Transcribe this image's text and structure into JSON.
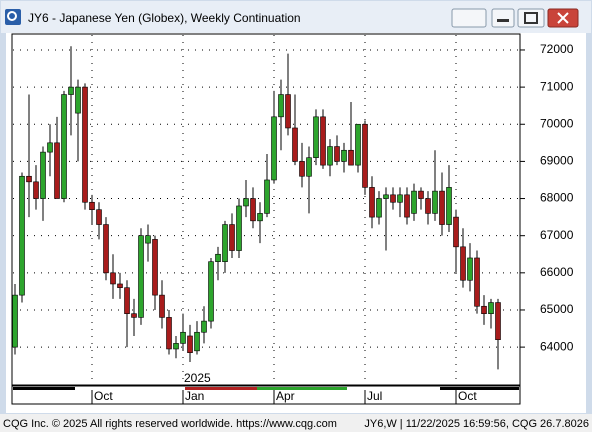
{
  "window": {
    "title": "JY6 - Japanese Yen (Globex), Weekly Continuation"
  },
  "chart_data": {
    "type": "candlestick",
    "annotation": "2025",
    "categories": [
      null,
      null,
      null,
      null,
      null,
      null,
      null,
      null,
      null,
      null,
      null,
      "Oct",
      null,
      null,
      null,
      null,
      null,
      null,
      null,
      null,
      null,
      null,
      null,
      null,
      "Jan",
      null,
      null,
      null,
      null,
      null,
      null,
      null,
      null,
      null,
      null,
      null,
      null,
      "Apr",
      null,
      null,
      null,
      null,
      null,
      null,
      null,
      null,
      null,
      null,
      null,
      null,
      "Jul",
      null,
      null,
      null,
      null,
      null,
      null,
      null,
      null,
      null,
      null,
      null,
      null,
      "Oct",
      null,
      null,
      null,
      null,
      null,
      null
    ],
    "open": [
      64000,
      65400,
      68600,
      68450,
      68000,
      69250,
      69500,
      68000,
      70800,
      70300,
      71000,
      67900,
      67700,
      67300,
      66000,
      65700,
      65600,
      64900,
      64800,
      66800,
      66900,
      65400,
      64800,
      63950,
      64100,
      64300,
      63900,
      64400,
      64700,
      66300,
      66300,
      67300,
      66600,
      67800,
      68000,
      67400,
      67600,
      68500,
      70200,
      70800,
      69900,
      69000,
      68600,
      69100,
      70200,
      68900,
      69400,
      69000,
      69300,
      68900,
      70000,
      68300,
      67500,
      68000,
      68100,
      67900,
      68100,
      67600,
      68200,
      68000,
      67600,
      68200,
      67300,
      67500,
      66700,
      65800,
      66400,
      65100,
      64900,
      65200
    ],
    "high": [
      65700,
      68700,
      70800,
      68900,
      69400,
      70000,
      70200,
      70900,
      72100,
      71200,
      71100,
      68100,
      67900,
      67500,
      66500,
      66000,
      65800,
      65300,
      67200,
      67300,
      67000,
      65800,
      65000,
      64300,
      64900,
      64600,
      64700,
      65100,
      66400,
      66700,
      67400,
      67600,
      68000,
      68500,
      68300,
      67900,
      69200,
      70900,
      71200,
      71900,
      70800,
      69500,
      69400,
      70400,
      70400,
      69600,
      69700,
      69500,
      70600,
      70000,
      70100,
      68600,
      68200,
      68300,
      68300,
      68300,
      68300,
      68400,
      68300,
      68200,
      69300,
      68700,
      68900,
      67700,
      67200,
      66800,
      66600,
      65400,
      65300,
      65300
    ],
    "low": [
      63800,
      65200,
      67500,
      67700,
      67400,
      68600,
      68000,
      67900,
      69700,
      69000,
      67700,
      67300,
      66900,
      65800,
      65300,
      65300,
      64000,
      64300,
      64600,
      66300,
      65000,
      64500,
      63800,
      63700,
      63900,
      63600,
      63800,
      64100,
      64500,
      65800,
      66000,
      66400,
      66400,
      67500,
      67200,
      66800,
      67500,
      68400,
      69300,
      69700,
      68900,
      68300,
      67600,
      68900,
      68800,
      68600,
      68900,
      68700,
      68900,
      68700,
      68100,
      67200,
      67300,
      66600,
      67700,
      67500,
      67300,
      67400,
      67700,
      67300,
      67400,
      67000,
      67100,
      66000,
      65600,
      65500,
      64900,
      64600,
      64500,
      63400
    ],
    "close": [
      65400,
      68600,
      68450,
      68000,
      69250,
      69500,
      68000,
      70800,
      71000,
      71000,
      67900,
      67700,
      67300,
      66000,
      65700,
      65600,
      64900,
      64800,
      67000,
      67000,
      65400,
      64800,
      63950,
      64100,
      64400,
      63850,
      64400,
      64700,
      66300,
      66500,
      67300,
      66600,
      67800,
      68000,
      67400,
      67600,
      68500,
      70200,
      70800,
      69900,
      69000,
      68600,
      69100,
      70200,
      68900,
      69400,
      69000,
      69300,
      68900,
      70000,
      68300,
      67500,
      68000,
      68100,
      67900,
      68100,
      67500,
      68200,
      68000,
      67600,
      68200,
      67300,
      68300,
      66700,
      65800,
      66400,
      65100,
      64900,
      65200,
      64200
    ],
    "up_color": "#2da52d",
    "down_color": "#a81c1c",
    "ylim": [
      62980,
      72430
    ],
    "yticks": [
      64000,
      65000,
      66000,
      67000,
      68000,
      69000,
      70000,
      71000,
      72000
    ],
    "grid": true
  },
  "footer": {
    "left": "CQG Inc. © 2025 All rights reserved worldwide. https://www.cqg.com",
    "right": "JY6,W | 11/22/2025 16:59:56, CQG 26.7.8026"
  }
}
